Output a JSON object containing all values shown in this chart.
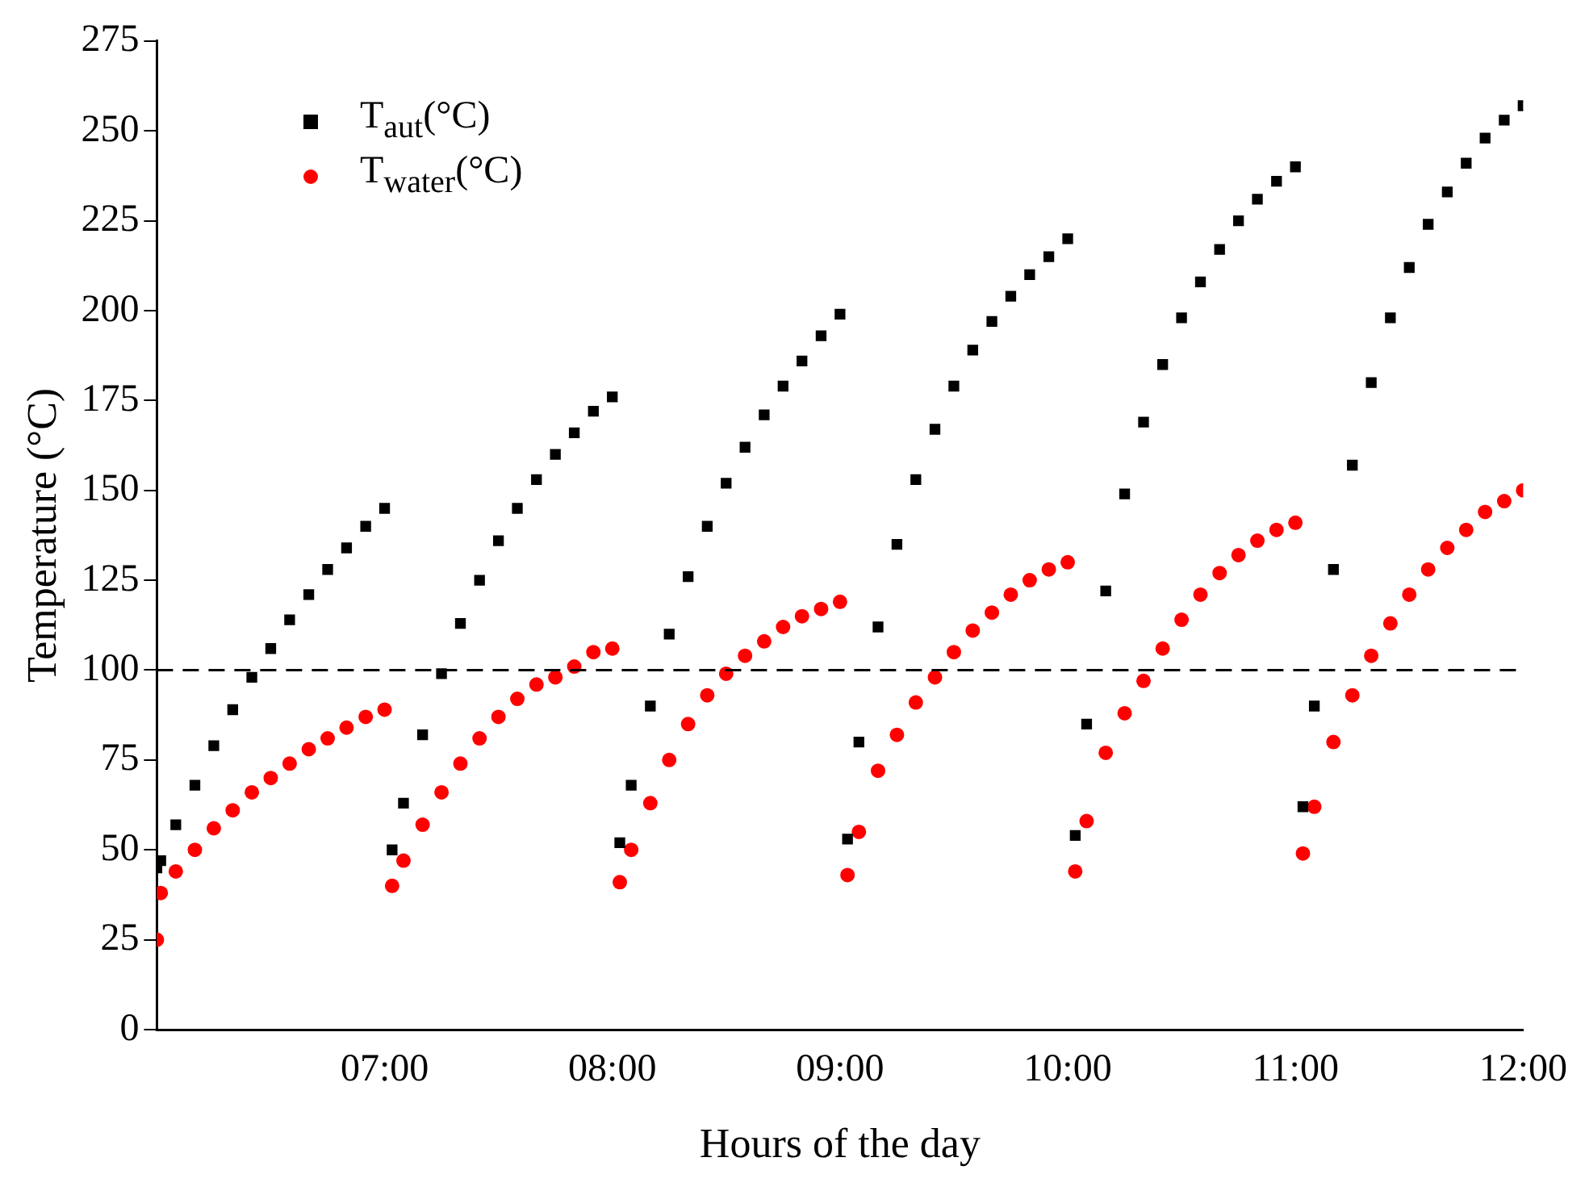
{
  "chart_data": {
    "type": "scatter",
    "xlabel": "Hours of the day",
    "ylabel": "Temperature (°C)",
    "x": [
      6,
      6.017,
      6.083,
      6.167,
      6.25,
      6.333,
      6.417,
      6.5,
      6.583,
      6.667,
      6.75,
      6.833,
      6.917,
      7,
      7.033,
      7.083,
      7.167,
      7.25,
      7.333,
      7.417,
      7.5,
      7.583,
      7.667,
      7.75,
      7.833,
      7.917,
      8,
      8.033,
      8.083,
      8.167,
      8.25,
      8.333,
      8.417,
      8.5,
      8.583,
      8.667,
      8.75,
      8.833,
      8.917,
      9,
      9.033,
      9.083,
      9.167,
      9.25,
      9.333,
      9.417,
      9.5,
      9.583,
      9.667,
      9.75,
      9.833,
      9.917,
      10,
      10.033,
      10.083,
      10.167,
      10.25,
      10.333,
      10.417,
      10.5,
      10.583,
      10.667,
      10.75,
      10.833,
      10.917,
      11,
      11.033,
      11.083,
      11.167,
      11.25,
      11.333,
      11.417,
      11.5,
      11.583,
      11.667,
      11.75,
      11.833,
      11.917,
      12
    ],
    "series": [
      {
        "name": "T$_{aut}$(°C)",
        "color": "#000000",
        "marker": "square",
        "values": [
          45,
          47,
          57,
          68,
          79,
          89,
          98,
          106,
          114,
          121,
          128,
          134,
          140,
          145,
          50,
          63,
          82,
          99,
          113,
          125,
          136,
          145,
          153,
          160,
          166,
          172,
          176,
          52,
          68,
          90,
          110,
          126,
          140,
          152,
          162,
          171,
          179,
          186,
          193,
          199,
          53,
          80,
          112,
          135,
          153,
          167,
          179,
          189,
          197,
          204,
          210,
          215,
          220,
          54,
          85,
          122,
          149,
          169,
          185,
          198,
          208,
          217,
          225,
          231,
          236,
          240,
          62,
          90,
          128,
          157,
          180,
          198,
          212,
          224,
          233,
          241,
          248,
          253,
          257
        ]
      },
      {
        "name": "T$_{water}$(°C)",
        "color": "#ff0000",
        "marker": "circle",
        "values": [
          25,
          38,
          44,
          50,
          56,
          61,
          66,
          70,
          74,
          78,
          81,
          84,
          87,
          89,
          40,
          47,
          57,
          66,
          74,
          81,
          87,
          92,
          96,
          98,
          101,
          105,
          106,
          41,
          50,
          63,
          75,
          85,
          93,
          99,
          104,
          108,
          112,
          115,
          117,
          119,
          43,
          55,
          72,
          82,
          91,
          98,
          105,
          111,
          116,
          121,
          125,
          128,
          130,
          44,
          58,
          77,
          88,
          97,
          106,
          114,
          121,
          127,
          132,
          136,
          139,
          141,
          49,
          62,
          80,
          93,
          104,
          113,
          121,
          128,
          134,
          139,
          144,
          147,
          150
        ]
      }
    ],
    "xlim": [
      6,
      12
    ],
    "xticks": [
      {
        "value": 7,
        "label": "07:00"
      },
      {
        "value": 8,
        "label": "08:00"
      },
      {
        "value": 9,
        "label": "09:00"
      },
      {
        "value": 10,
        "label": "10:00"
      },
      {
        "value": 11,
        "label": "11:00"
      },
      {
        "value": 12,
        "label": "12:00"
      }
    ],
    "ylim": [
      0,
      275
    ],
    "yticks": [
      0,
      25,
      50,
      75,
      100,
      125,
      150,
      175,
      200,
      225,
      250,
      275
    ],
    "ref_lines": [
      {
        "axis": "y",
        "value": 100,
        "color": "#000000",
        "line_style": "dashed"
      }
    ],
    "grid": false,
    "legend": "top left"
  }
}
